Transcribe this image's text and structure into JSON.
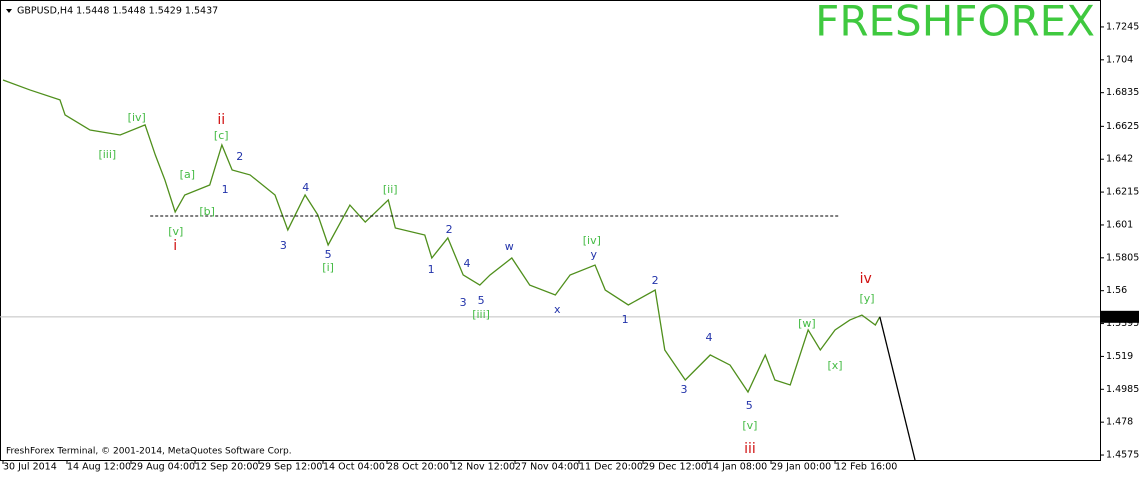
{
  "chart_data": {
    "type": "line",
    "title": "GBPUSD,H4  1.5448 1.5448 1.5429 1.5437",
    "watermark": "FRESHFOREX",
    "footer": "FreshForex Terminal, © 2001-2014, MetaQuotes Software Corp.",
    "xlim": [
      0,
      17.14
    ],
    "ylim": [
      1.4544,
      1.7413
    ],
    "xticks": [
      {
        "value": 0,
        "label": "30 Jul 2014"
      },
      {
        "value": 1,
        "label": "14 Aug 12:00"
      },
      {
        "value": 2,
        "label": "29 Aug 04:00"
      },
      {
        "value": 3,
        "label": "12 Sep 20:00"
      },
      {
        "value": 4,
        "label": "29 Sep 12:00"
      },
      {
        "value": 5,
        "label": "14 Oct 04:00"
      },
      {
        "value": 6,
        "label": "28 Oct 20:00"
      },
      {
        "value": 7,
        "label": "12 Nov 12:00"
      },
      {
        "value": 8,
        "label": "27 Nov 04:00"
      },
      {
        "value": 9,
        "label": "11 Dec 20:00"
      },
      {
        "value": 10,
        "label": "29 Dec 12:00"
      },
      {
        "value": 11,
        "label": "14 Jan 08:00"
      },
      {
        "value": 12,
        "label": "29 Jan 00:00"
      },
      {
        "value": 13,
        "label": "12 Feb 16:00"
      }
    ],
    "yticks": [
      1.7245,
      1.704,
      1.6835,
      1.6625,
      1.642,
      1.6215,
      1.601,
      1.5805,
      1.56,
      1.5395,
      1.519,
      1.4985,
      1.478,
      1.4575
    ],
    "current_price": 1.5437,
    "series": [
      {
        "color": "#4f8f1c",
        "style": "solid",
        "x": [
          0,
          0.42,
          0.89,
          0.97,
          1.36,
          1.83,
          2.22,
          2.38,
          2.53,
          2.69,
          2.84,
          3.23,
          3.42,
          3.58,
          3.86,
          4.25,
          4.45,
          4.72,
          4.92,
          5.08,
          5.42,
          5.66,
          6.02,
          6.13,
          6.59,
          6.7,
          6.95,
          7.19,
          7.45,
          7.61,
          7.95,
          8.23,
          8.63,
          8.86,
          9.25,
          9.41,
          9.77,
          10.19,
          10.34,
          10.66,
          11.05,
          11.36,
          11.64,
          11.91,
          12.06,
          12.3,
          12.58,
          12.77,
          13.0,
          13.23,
          13.42,
          13.63,
          13.7
        ],
        "values": [
          1.6914,
          1.6852,
          1.679,
          1.6696,
          1.6602,
          1.6571,
          1.6634,
          1.6446,
          1.629,
          1.6091,
          1.6197,
          1.6259,
          1.6509,
          1.6353,
          1.6322,
          1.6197,
          1.5979,
          1.6197,
          1.6072,
          1.5885,
          1.6134,
          1.6028,
          1.6166,
          1.5991,
          1.5947,
          1.5804,
          1.5929,
          1.5698,
          1.5635,
          1.5698,
          1.5804,
          1.5635,
          1.5573,
          1.5698,
          1.576,
          1.5604,
          1.5511,
          1.5604,
          1.523,
          1.5043,
          1.5199,
          1.5136,
          1.4968,
          1.5199,
          1.5043,
          1.5012,
          1.5355,
          1.523,
          1.5355,
          1.5417,
          1.5448,
          1.5386,
          1.5437
        ]
      },
      {
        "color": "#000000",
        "style": "solid",
        "x": [
          13.7,
          14.25
        ],
        "values": [
          1.5437,
          1.4544
        ]
      },
      {
        "color": "#000000",
        "style": "dashed",
        "x": [
          2.3,
          13.05
        ],
        "values": [
          1.6066,
          1.6066
        ]
      }
    ],
    "annotations": [
      {
        "text": "[iv]",
        "x": 2.09,
        "y": 1.6677,
        "color": "#44bb44"
      },
      {
        "text": "[iii]",
        "x": 1.63,
        "y": 1.6446,
        "color": "#44bb44"
      },
      {
        "text": "ii",
        "x": 3.41,
        "y": 1.6665,
        "color": "#d01010"
      },
      {
        "text": "[c]",
        "x": 3.41,
        "y": 1.6565,
        "color": "#44bb44"
      },
      {
        "text": "[a]",
        "x": 2.88,
        "y": 1.6322,
        "color": "#44bb44"
      },
      {
        "text": "1",
        "x": 3.47,
        "y": 1.6228,
        "color": "#2233aa"
      },
      {
        "text": "2",
        "x": 3.7,
        "y": 1.6434,
        "color": "#2233aa"
      },
      {
        "text": "[b]",
        "x": 3.19,
        "y": 1.6091,
        "color": "#44bb44"
      },
      {
        "text": "[v]",
        "x": 2.7,
        "y": 1.5966,
        "color": "#44bb44"
      },
      {
        "text": "i",
        "x": 2.69,
        "y": 1.5879,
        "color": "#d01010"
      },
      {
        "text": "4",
        "x": 4.73,
        "y": 1.6241,
        "color": "#2233aa"
      },
      {
        "text": "[ii]",
        "x": 6.05,
        "y": 1.6228,
        "color": "#44bb44"
      },
      {
        "text": "3",
        "x": 4.38,
        "y": 1.5879,
        "color": "#2233aa"
      },
      {
        "text": "5",
        "x": 5.08,
        "y": 1.5823,
        "color": "#2233aa"
      },
      {
        "text": "[i]",
        "x": 5.08,
        "y": 1.5742,
        "color": "#44bb44"
      },
      {
        "text": "2",
        "x": 6.97,
        "y": 1.5979,
        "color": "#2233aa"
      },
      {
        "text": "1",
        "x": 6.69,
        "y": 1.5729,
        "color": "#2233aa"
      },
      {
        "text": "4",
        "x": 7.25,
        "y": 1.5767,
        "color": "#2233aa"
      },
      {
        "text": "3",
        "x": 7.19,
        "y": 1.5523,
        "color": "#2233aa"
      },
      {
        "text": "5",
        "x": 7.47,
        "y": 1.5536,
        "color": "#2233aa"
      },
      {
        "text": "[iii]",
        "x": 7.47,
        "y": 1.5448,
        "color": "#44bb44"
      },
      {
        "text": "w",
        "x": 7.91,
        "y": 1.5873,
        "color": "#2233aa"
      },
      {
        "text": "[iv]",
        "x": 9.2,
        "y": 1.591,
        "color": "#44bb44"
      },
      {
        "text": "y",
        "x": 9.23,
        "y": 1.5823,
        "color": "#2233aa"
      },
      {
        "text": "x",
        "x": 8.66,
        "y": 1.548,
        "color": "#2233aa"
      },
      {
        "text": "2",
        "x": 10.19,
        "y": 1.566,
        "color": "#2233aa"
      },
      {
        "text": "1",
        "x": 9.72,
        "y": 1.5417,
        "color": "#2233aa"
      },
      {
        "text": "4",
        "x": 11.03,
        "y": 1.5305,
        "color": "#2233aa"
      },
      {
        "text": "3",
        "x": 10.64,
        "y": 1.4981,
        "color": "#2233aa"
      },
      {
        "text": "5",
        "x": 11.66,
        "y": 1.4881,
        "color": "#2233aa"
      },
      {
        "text": "[v]",
        "x": 11.67,
        "y": 1.4756,
        "color": "#44bb44"
      },
      {
        "text": "iii",
        "x": 11.67,
        "y": 1.4612,
        "color": "#d01010"
      },
      {
        "text": "[w]",
        "x": 12.56,
        "y": 1.5392,
        "color": "#44bb44"
      },
      {
        "text": "[x]",
        "x": 13.0,
        "y": 1.513,
        "color": "#44bb44"
      },
      {
        "text": "iv",
        "x": 13.48,
        "y": 1.5673,
        "color": "#d01010"
      },
      {
        "text": "[y]",
        "x": 13.5,
        "y": 1.5548,
        "color": "#44bb44"
      }
    ]
  }
}
